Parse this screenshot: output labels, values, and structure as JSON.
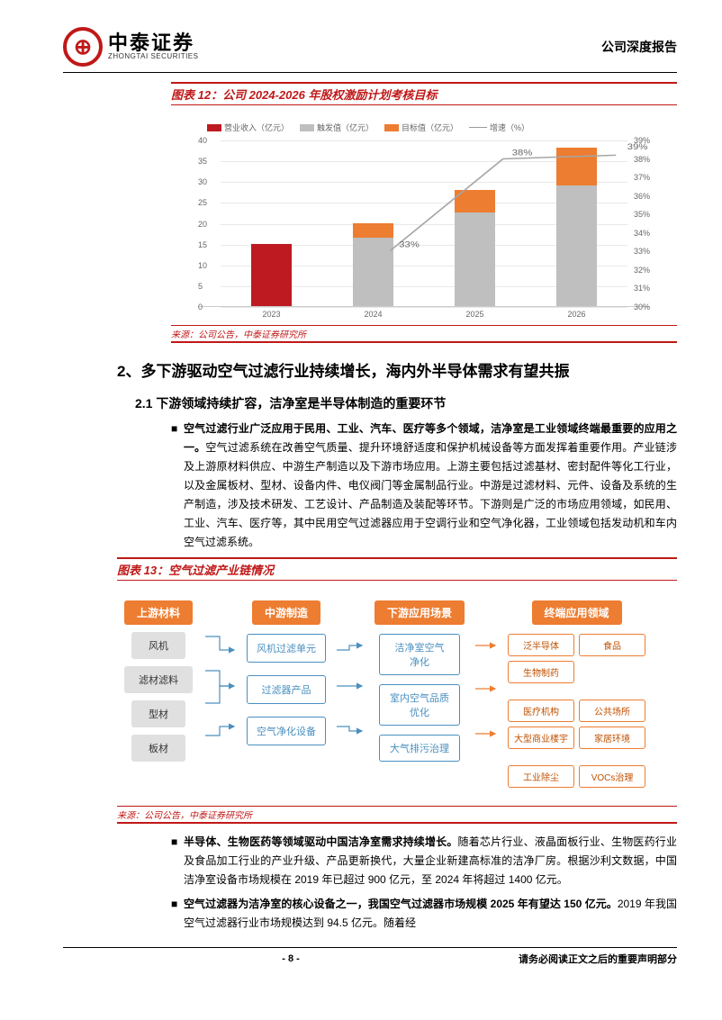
{
  "header": {
    "logo_cn": "中泰证券",
    "logo_en": "ZHONGTAI SECURITIES",
    "report_type": "公司深度报告"
  },
  "chart12": {
    "title": "图表 12：公司 2024-2026 年股权激励计划考核目标",
    "source": "来源：公司公告，中泰证券研究所",
    "legend": [
      "营业收入（亿元）",
      "触发值（亿元）",
      "目标值（亿元）",
      "增速（%）"
    ],
    "categories": [
      "2023",
      "2024",
      "2025",
      "2026"
    ],
    "y_left": {
      "min": 0,
      "max": 40,
      "ticks": [
        0,
        5,
        10,
        15,
        20,
        25,
        30,
        35,
        40
      ]
    },
    "y_right": {
      "min": 30,
      "max": 39,
      "ticks": [
        "30%",
        "31%",
        "32%",
        "33%",
        "34%",
        "35%",
        "36%",
        "37%",
        "38%",
        "39%"
      ]
    },
    "revenue_2023": 15,
    "trigger": [
      0,
      16.5,
      22.5,
      29
    ],
    "target": [
      0,
      3.5,
      5.5,
      9
    ],
    "growth_pct": [
      null,
      33,
      38,
      38.2
    ],
    "growth_labels": [
      "",
      "33%",
      "38%",
      ""
    ],
    "colors": {
      "revenue": "#be1a21",
      "trigger": "#bfbfbf",
      "target": "#ed7d31",
      "line": "#a6a6a6",
      "grid": "#e8e8e8"
    }
  },
  "section2": {
    "title": "2、多下游驱动空气过滤行业持续增长，海内外半导体需求有望共振",
    "sub1": "2.1 下游领域持续扩容，洁净室是半导体制造的重要环节",
    "para1": "空气过滤行业广泛应用于民用、工业、汽车、医疗等多个领域，洁净室是工业领域终端最重要的应用之一。空气过滤系统在改善空气质量、提升环境舒适度和保护机械设备等方面发挥着重要作用。产业链涉及上游原材料供应、中游生产制造以及下游市场应用。上游主要包括过滤基材、密封配件等化工行业，以及金属板材、型材、设备内件、电仪阀门等金属制品行业。中游是过滤材料、元件、设备及系统的生产制造，涉及技术研发、工艺设计、产品制造及装配等环节。下游则是广泛的市场应用领域，如民用、工业、汽车、医疗等，其中民用空气过滤器应用于空调行业和空气净化器，工业领域包括发动机和车内空气过滤系统。"
  },
  "chart13": {
    "title": "图表 13：空气过滤产业链情况",
    "source": "来源：公司公告，中泰证券研究所",
    "heads": [
      "上游材料",
      "中游制造",
      "下游应用场景",
      "终端应用领域"
    ],
    "upstream": [
      "风机",
      "滤材滤料",
      "型材",
      "板材"
    ],
    "midstream": [
      "风机过滤单元",
      "过滤器产品",
      "空气净化设备"
    ],
    "downstream": [
      "洁净室空气净化",
      "室内空气品质优化",
      "大气排污治理"
    ],
    "end": [
      [
        "泛半导体",
        "食品"
      ],
      [
        "生物制药",
        ""
      ],
      [
        "医疗机构",
        "公共场所"
      ],
      [
        "大型商业楼宇",
        "家居环境"
      ],
      [
        "工业除尘",
        "VOCs治理"
      ]
    ]
  },
  "para2": "半导体、生物医药等领域驱动中国洁净室需求持续增长。随着芯片行业、液晶面板行业、生物医药行业及食品加工行业的产业升级、产品更新换代，大量企业新建高标准的洁净厂房。根据沙利文数据，中国洁净室设备市场规模在 2019 年已超过 900 亿元，至 2024 年将超过 1400 亿元。",
  "para3": "空气过滤器为洁净室的核心设备之一，我国空气过滤器市场规模 2025 年有望达 150 亿元。2019 年我国空气过滤器行业市场规模达到 94.5 亿元。随着经",
  "footer": {
    "page": "- 8 -",
    "note": "请务必阅读正文之后的重要声明部分"
  }
}
